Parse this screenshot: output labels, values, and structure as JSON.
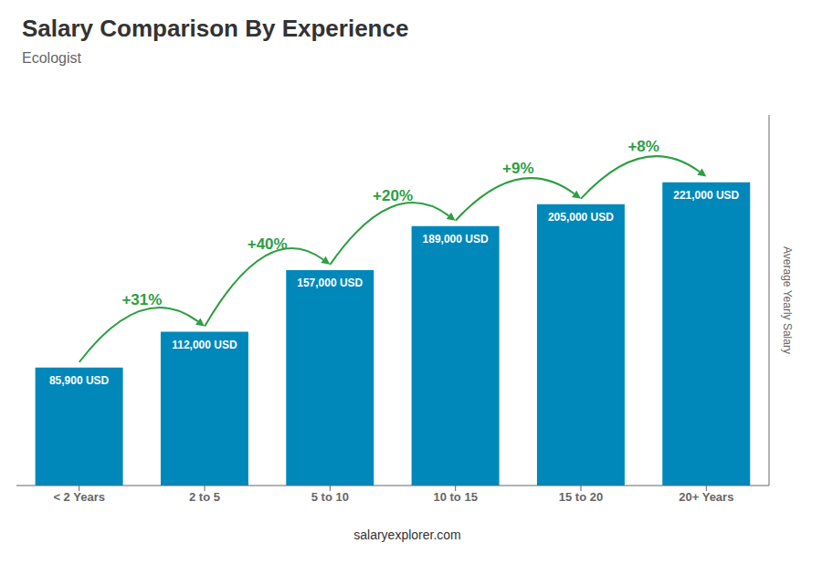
{
  "chart_data": {
    "type": "bar",
    "title": "Salary Comparison By Experience",
    "subtitle": "Ecologist",
    "ylabel": "Average Yearly Salary",
    "categories": [
      "< 2 Years",
      "2 to 5",
      "5 to 10",
      "10 to 15",
      "15 to 20",
      "20+ Years"
    ],
    "values": [
      85900,
      112000,
      157000,
      189000,
      205000,
      221000
    ],
    "value_labels": [
      "85,900 USD",
      "112,000 USD",
      "157,000 USD",
      "189,000 USD",
      "205,000 USD",
      "221,000 USD"
    ],
    "data_labels": true,
    "color": "#0088bb",
    "ylim": [
      0,
      270000
    ],
    "grid": false,
    "tick_labels": "x",
    "annotations": [
      {
        "text": "+31%",
        "from": "< 2 Years",
        "to": "2 to 5"
      },
      {
        "text": "+40%",
        "from": "2 to 5",
        "to": "5 to 10"
      },
      {
        "text": "+20%",
        "from": "5 to 10",
        "to": "10 to 15"
      },
      {
        "text": "+9%",
        "from": "10 to 15",
        "to": "15 to 20"
      },
      {
        "text": "+8%",
        "from": "15 to 20",
        "to": "20+ Years"
      },
      {
        "text": "salaryexplorer.com"
      }
    ]
  }
}
